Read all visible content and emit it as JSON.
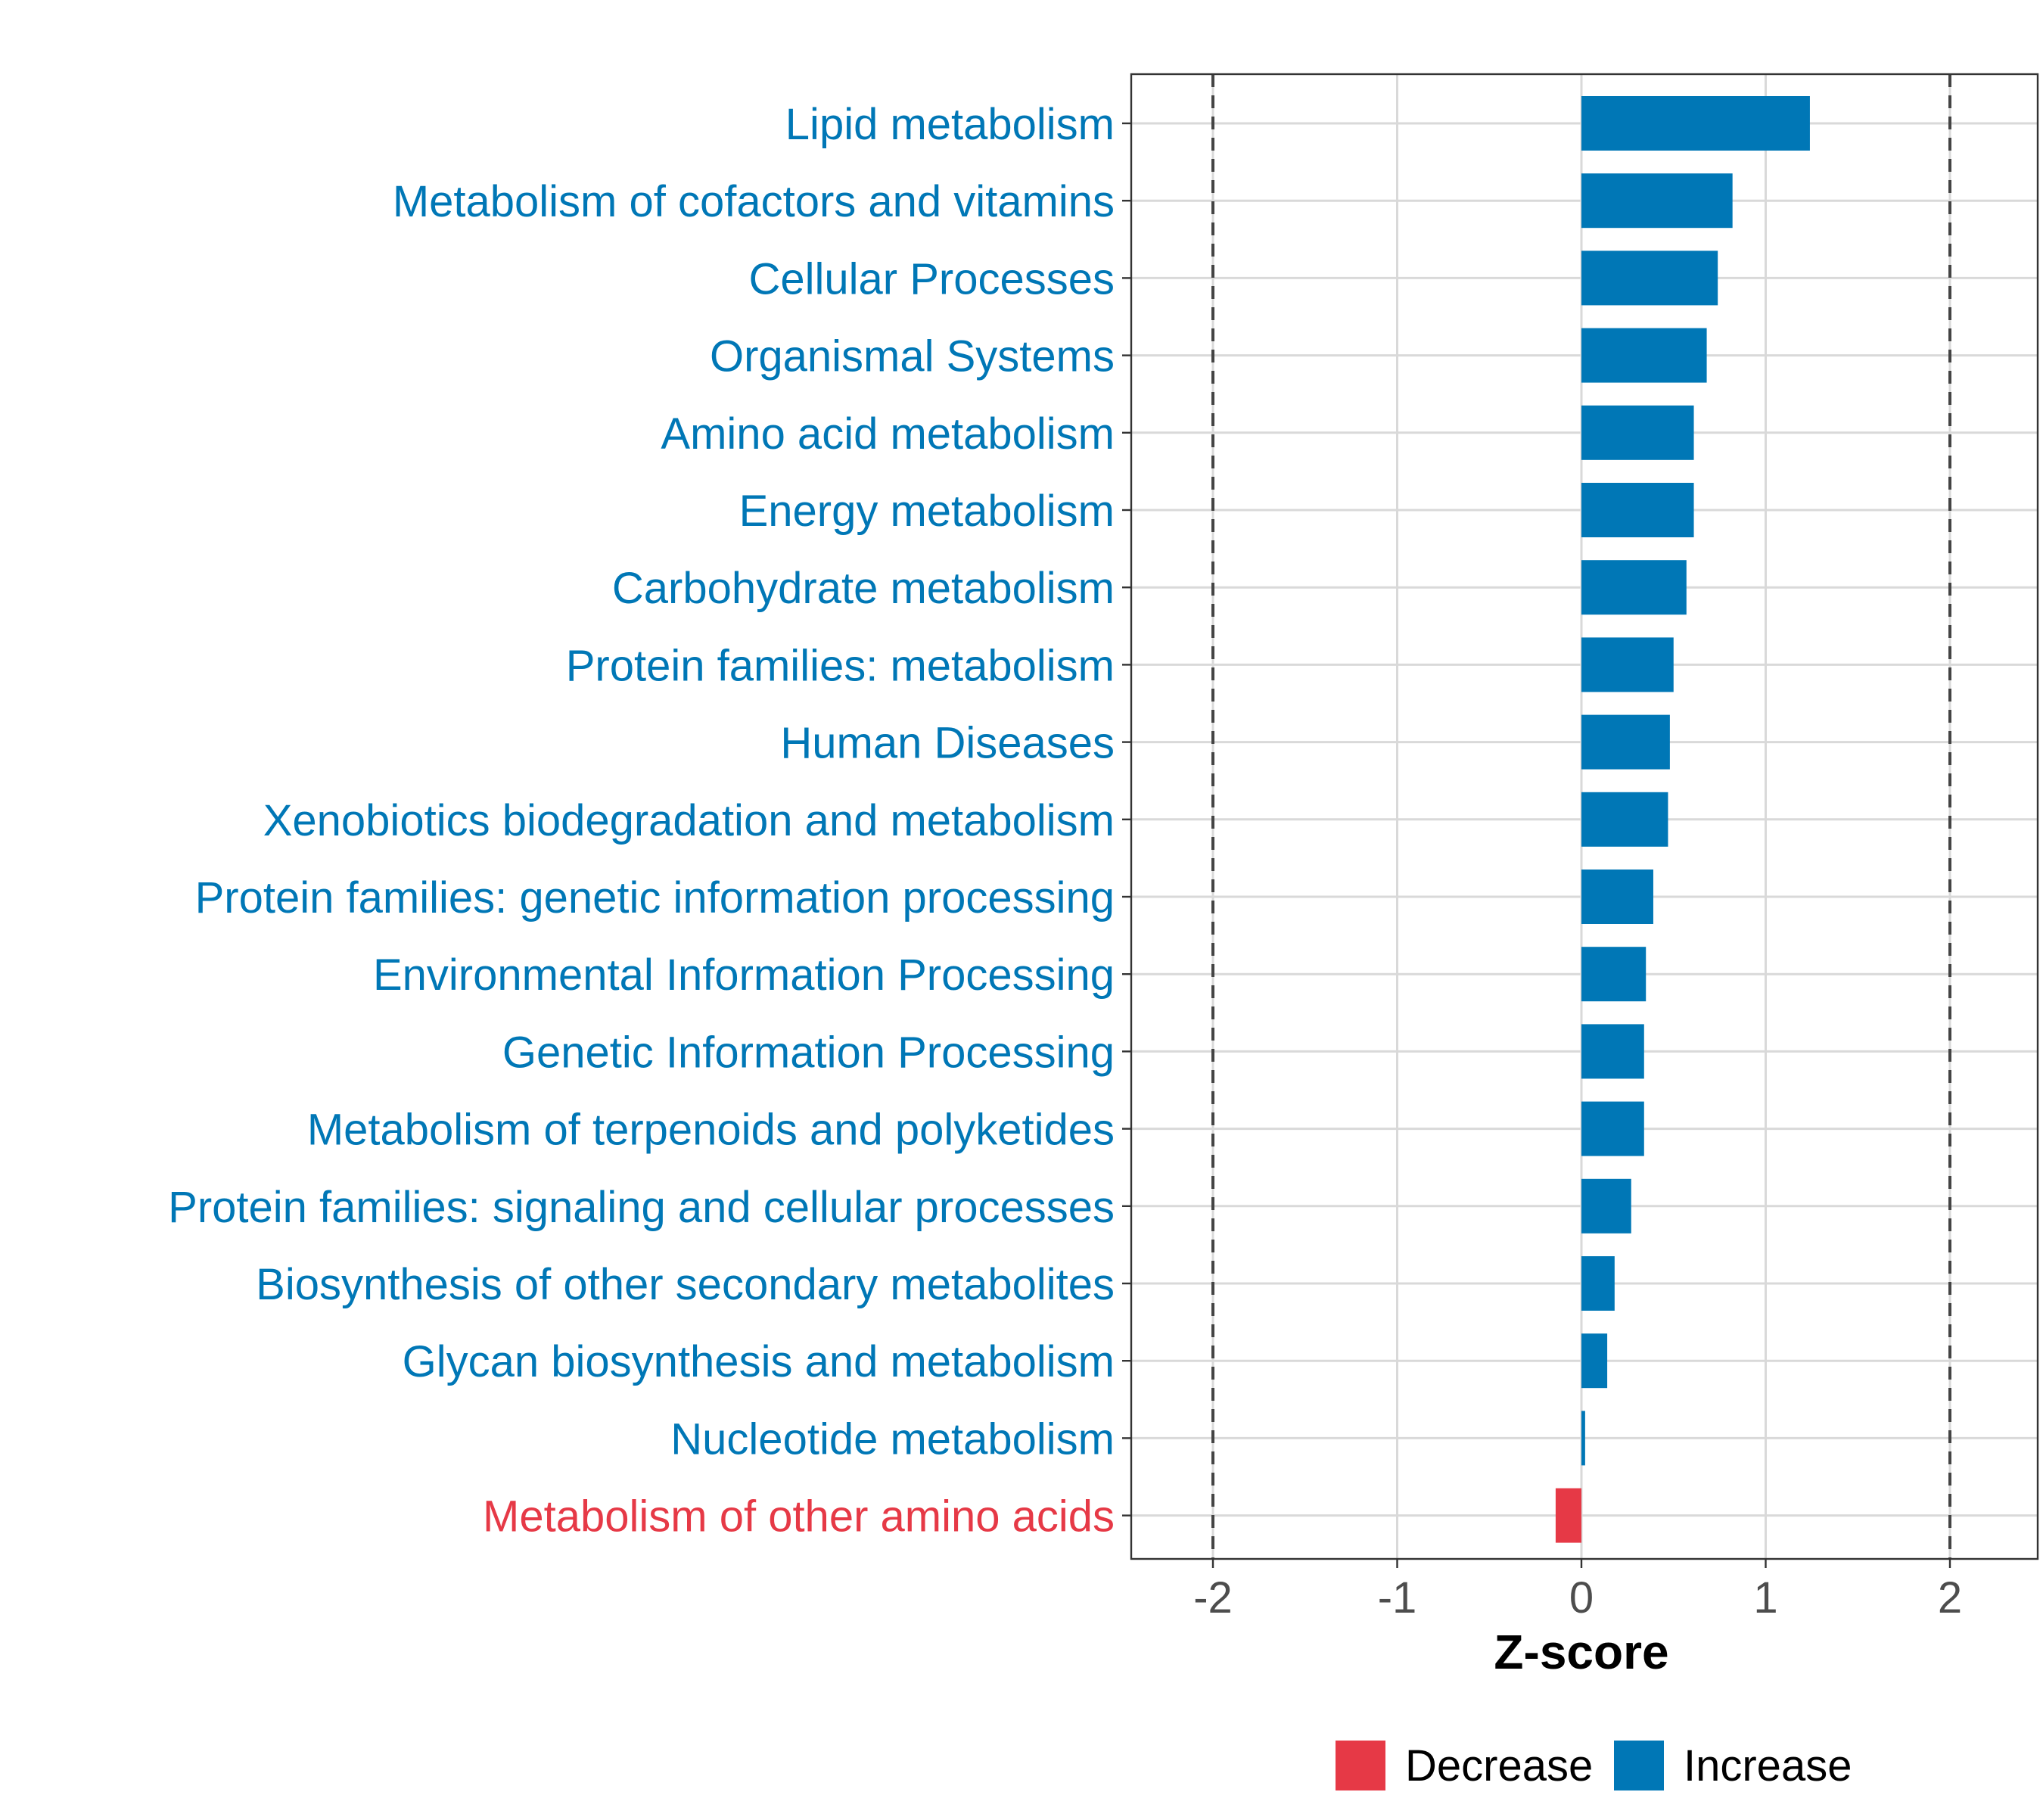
{
  "chart_data": {
    "type": "bar",
    "orientation": "horizontal",
    "title": "",
    "xlabel": "Z-score",
    "ylabel": "",
    "xlim": [
      -2.46,
      2.46
    ],
    "xticks": [
      -2,
      -1,
      0,
      1,
      2
    ],
    "xtick_labels": [
      "-2",
      "-1",
      "0",
      "1",
      "2"
    ],
    "reference_lines": [
      -2,
      2
    ],
    "grid": true,
    "legend_position": "bottom",
    "categories": [
      "Lipid metabolism",
      "Metabolism of cofactors and vitamins",
      "Cellular Processes",
      "Organismal Systems",
      "Amino acid metabolism",
      "Energy metabolism",
      "Carbohydrate metabolism",
      "Protein families: metabolism",
      "Human Diseases",
      "Xenobiotics biodegradation and metabolism",
      "Protein families: genetic information processing",
      "Environmental Information Processing",
      "Genetic Information Processing",
      "Metabolism of terpenoids and polyketides",
      "Protein families: signaling and cellular processes",
      "Biosynthesis of other secondary metabolites",
      "Glycan biosynthesis and metabolism",
      "Nucleotide metabolism",
      "Metabolism of other amino acids"
    ],
    "values": [
      1.24,
      0.82,
      0.74,
      0.68,
      0.61,
      0.61,
      0.57,
      0.5,
      0.48,
      0.47,
      0.39,
      0.35,
      0.34,
      0.34,
      0.27,
      0.18,
      0.14,
      0.02,
      -0.14
    ],
    "groups": [
      "Increase",
      "Increase",
      "Increase",
      "Increase",
      "Increase",
      "Increase",
      "Increase",
      "Increase",
      "Increase",
      "Increase",
      "Increase",
      "Increase",
      "Increase",
      "Increase",
      "Increase",
      "Increase",
      "Increase",
      "Increase",
      "Decrease"
    ],
    "legend": [
      {
        "label": "Decrease",
        "color": "#e63946"
      },
      {
        "label": "Increase",
        "color": "#0077b6"
      }
    ],
    "colors": {
      "Increase": "#0077b6",
      "Decrease": "#e63946"
    }
  }
}
